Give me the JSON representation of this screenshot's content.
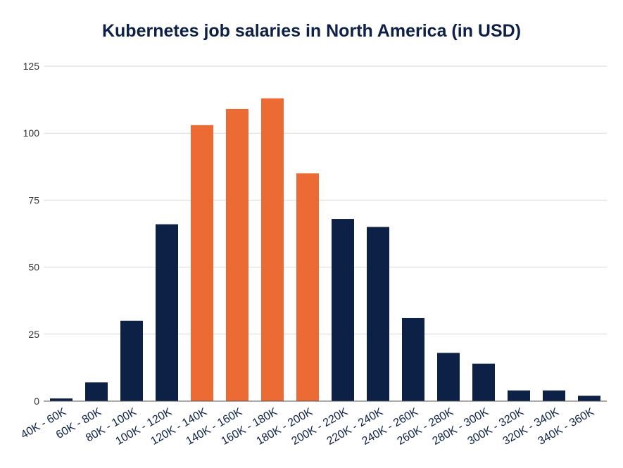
{
  "chart_data": {
    "type": "bar",
    "title": "Kubernetes job salaries in North America (in USD)",
    "xlabel": "",
    "ylabel": "",
    "ylim": [
      0,
      125
    ],
    "yticks": [
      0,
      25,
      50,
      75,
      100,
      125
    ],
    "grid": true,
    "categories": [
      "40K - 60K",
      "60K - 80K",
      "80K - 100K",
      "100K - 120K",
      "120K - 140K",
      "140K - 160K",
      "160K - 180K",
      "180K - 200K",
      "200K - 220K",
      "220K - 240K",
      "240K - 260K",
      "260K - 280K",
      "280K - 300K",
      "300K - 320K",
      "320K - 340K",
      "340K - 360K"
    ],
    "values": [
      1,
      7,
      30,
      66,
      103,
      109,
      113,
      85,
      68,
      65,
      31,
      18,
      14,
      4,
      4,
      2
    ],
    "highlighted_categories": [
      "120K - 140K",
      "140K - 160K",
      "160K - 180K",
      "180K - 200K"
    ],
    "colors": {
      "default_bar": "#0d2146",
      "highlight_bar": "#ec6b35"
    }
  }
}
